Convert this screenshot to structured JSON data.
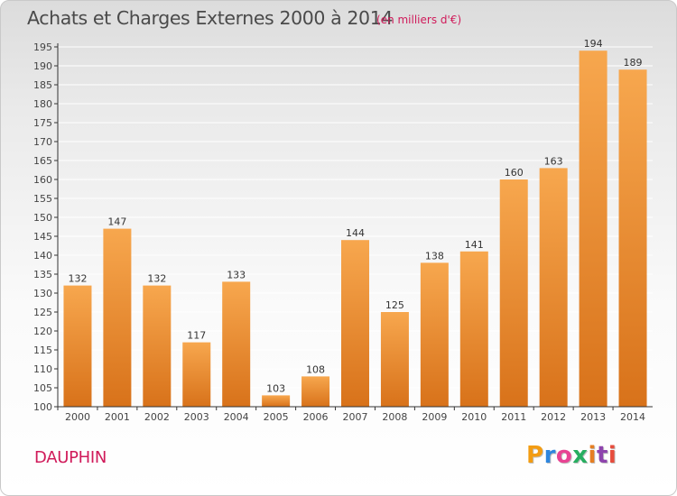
{
  "header": {
    "title": "Achats et Charges Externes 2000 à 2014",
    "subtitle": "(en milliers d'€)"
  },
  "footer": {
    "commune": "DAUPHIN",
    "logo": "Proxiti",
    "logo_colors": [
      "#f39c12",
      "#2e86de",
      "#e84393",
      "#27ae60",
      "#e67e22",
      "#8e44ad",
      "#e74c3c"
    ]
  },
  "colors": {
    "bar_light": "#f7a74e",
    "bar_dark": "#d8721a",
    "grid": "#ffffff",
    "axis": "#333333"
  },
  "chart_data": {
    "type": "bar",
    "title": "Achats et Charges Externes 2000 à 2014",
    "subtitle": "(en milliers d'€)",
    "xlabel": "",
    "ylabel": "",
    "grid": true,
    "categories": [
      "2000",
      "2001",
      "2002",
      "2003",
      "2004",
      "2005",
      "2006",
      "2007",
      "2008",
      "2009",
      "2010",
      "2011",
      "2012",
      "2013",
      "2014"
    ],
    "values": [
      132,
      147,
      132,
      117,
      133,
      103,
      108,
      144,
      125,
      138,
      141,
      160,
      163,
      194,
      189
    ],
    "value_labels": [
      "132",
      "147",
      "132",
      "117",
      "133",
      "103",
      "108",
      "144",
      "125",
      "138",
      "141",
      "160",
      "163",
      "194",
      "189"
    ],
    "ylim": [
      100,
      195
    ],
    "yticks": [
      100,
      105,
      110,
      115,
      120,
      125,
      130,
      135,
      140,
      145,
      150,
      155,
      160,
      165,
      170,
      175,
      180,
      185,
      190,
      195
    ],
    "ytick_labels": [
      "100",
      "105",
      "110",
      "115",
      "120",
      "125",
      "130",
      "135",
      "140",
      "145",
      "150",
      "155",
      "160",
      "165",
      "170",
      "175",
      "180",
      "185",
      "190",
      "195"
    ]
  }
}
